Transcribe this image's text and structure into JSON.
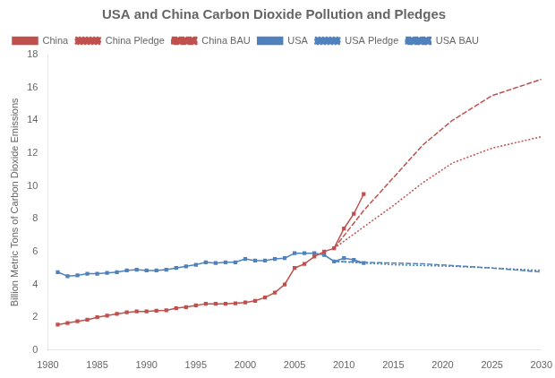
{
  "chart_data": {
    "type": "line",
    "title": "USA and China Carbon Dioxide Pollution and Pledges",
    "ylabel": "Billion Metric Tons of Carbon Dioxide Emissions",
    "xlim": [
      1980,
      2030
    ],
    "ylim": [
      0,
      18
    ],
    "xticks": [
      1980,
      1985,
      1990,
      1995,
      2000,
      2005,
      2010,
      2015,
      2020,
      2025,
      2030
    ],
    "yticks": [
      0,
      2,
      4,
      6,
      8,
      10,
      12,
      14,
      16,
      18
    ],
    "grid": false,
    "legend": "upper left",
    "series": [
      {
        "name": "China",
        "color": "#C0504D",
        "marker": "square",
        "line_style": "solid",
        "x": [
          1981,
          1982,
          1983,
          1984,
          1985,
          1986,
          1987,
          1988,
          1989,
          1990,
          1991,
          1992,
          1993,
          1994,
          1995,
          1996,
          1997,
          1998,
          1999,
          2000,
          2001,
          2002,
          2003,
          2004,
          2005,
          2006,
          2007,
          2008,
          2009,
          2010,
          2011,
          2012
        ],
        "values": [
          1.55,
          1.65,
          1.75,
          1.85,
          2.0,
          2.1,
          2.2,
          2.3,
          2.35,
          2.35,
          2.4,
          2.42,
          2.55,
          2.62,
          2.72,
          2.82,
          2.82,
          2.82,
          2.85,
          2.9,
          3.0,
          3.2,
          3.5,
          4.0,
          5.0,
          5.25,
          5.7,
          6.0,
          6.2,
          7.4,
          8.3,
          9.5
        ]
      },
      {
        "name": "China Pledge",
        "color": "#C0504D",
        "marker": "none",
        "line_style": "dotted",
        "x": [
          2009,
          2012,
          2015,
          2018,
          2021,
          2025,
          2030
        ],
        "values": [
          6.2,
          7.5,
          8.8,
          10.2,
          11.4,
          12.3,
          13.0
        ]
      },
      {
        "name": "China BAU",
        "color": "#C0504D",
        "marker": "none",
        "line_style": "dashed",
        "x": [
          2009,
          2012,
          2015,
          2018,
          2021,
          2025,
          2030
        ],
        "values": [
          6.2,
          8.5,
          10.5,
          12.5,
          14.0,
          15.5,
          16.5
        ]
      },
      {
        "name": "USA",
        "color": "#4F81BD",
        "marker": "square",
        "line_style": "solid",
        "x": [
          1981,
          1982,
          1983,
          1984,
          1985,
          1986,
          1987,
          1988,
          1989,
          1990,
          1991,
          1992,
          1993,
          1994,
          1995,
          1996,
          1997,
          1998,
          1999,
          2000,
          2001,
          2002,
          2003,
          2004,
          2005,
          2006,
          2007,
          2008,
          2009,
          2010,
          2011,
          2012
        ],
        "values": [
          4.75,
          4.5,
          4.55,
          4.65,
          4.65,
          4.7,
          4.75,
          4.85,
          4.9,
          4.85,
          4.85,
          4.9,
          5.0,
          5.1,
          5.2,
          5.35,
          5.3,
          5.35,
          5.35,
          5.55,
          5.45,
          5.45,
          5.55,
          5.6,
          5.9,
          5.9,
          5.9,
          5.8,
          5.4,
          5.6,
          5.5,
          5.3
        ]
      },
      {
        "name": "USA Pledge",
        "color": "#4F81BD",
        "marker": "none",
        "line_style": "dotted",
        "x": [
          2009,
          2012,
          2015,
          2018,
          2021,
          2025,
          2030
        ],
        "values": [
          5.4,
          5.3,
          5.2,
          5.15,
          5.1,
          5.0,
          4.85
        ]
      },
      {
        "name": "USA BAU",
        "color": "#4F81BD",
        "marker": "none",
        "line_style": "dashed",
        "x": [
          2009,
          2012,
          2015,
          2018,
          2021,
          2025,
          2030
        ],
        "values": [
          5.4,
          5.35,
          5.3,
          5.25,
          5.15,
          5.0,
          4.75
        ]
      }
    ]
  }
}
